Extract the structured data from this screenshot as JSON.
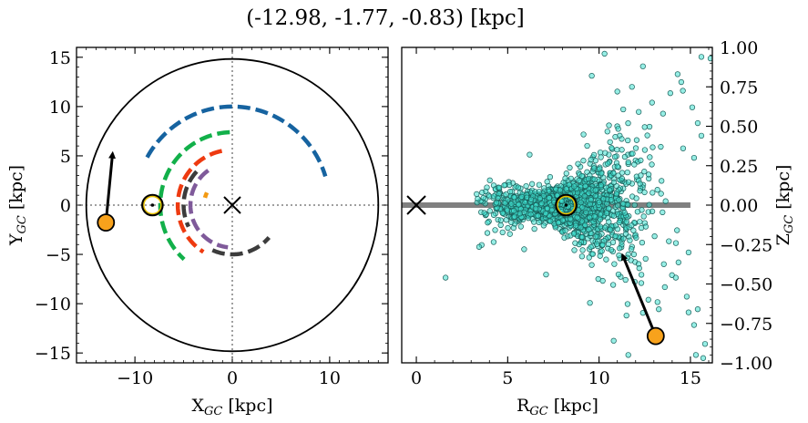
{
  "figure": {
    "suptitle": "(-12.98, -1.77, -0.83) [kpc]"
  },
  "chart_data": [
    {
      "type": "line",
      "panel": "left",
      "xlabel": "X_GC [kpc]",
      "ylabel": "Y_GC [kpc]",
      "xlim": [
        -16,
        16
      ],
      "ylim": [
        -16,
        16
      ],
      "xticks": [
        -10,
        0,
        10
      ],
      "yticks": [
        -15,
        -10,
        -5,
        0,
        5,
        10,
        15
      ],
      "tick_labels_x": [
        "−10",
        "0",
        "10"
      ],
      "tick_labels_y": [
        "−15",
        "−10",
        "−5",
        "0",
        "5",
        "10",
        "15"
      ],
      "boundary_circle_radius": 15,
      "arms": [
        {
          "color": "#1663a0",
          "radius": 10.0,
          "start_deg": 151,
          "end_deg": 17
        },
        {
          "color": "#12b04a",
          "radius": 7.4,
          "start_deg": 92,
          "end_deg": 228
        },
        {
          "color": "#ee3a10",
          "radius": 5.6,
          "start_deg": 101,
          "end_deg": 238
        },
        {
          "color": "#7f5a9a",
          "radius": 4.3,
          "start_deg": 125,
          "end_deg": 264
        },
        {
          "color": "#f39a12",
          "radius": 2.9,
          "start_deg": 154,
          "end_deg": 165
        },
        {
          "color": "#3c3c3c",
          "radius": 5.0,
          "start_deg": 137,
          "end_deg": 206
        },
        {
          "color": "#3c3c3c",
          "radius": 5.0,
          "start_deg": 246,
          "end_deg": 319
        }
      ],
      "center_marker": {
        "x": 0,
        "y": 0
      },
      "sun": {
        "x": -8.2,
        "y": 0
      },
      "object": {
        "x": -12.98,
        "y": -1.77,
        "color": "#f8a21c"
      },
      "velocity_arrow": {
        "x0": -12.98,
        "y0": -1.77,
        "x1": -12.3,
        "y1": 5.2
      }
    },
    {
      "type": "scatter",
      "panel": "right",
      "xlabel": "R_GC [kpc]",
      "ylabel": "Z_GC [kpc]",
      "xlim": [
        -0.8,
        16.2
      ],
      "ylim": [
        -1.0,
        1.0
      ],
      "xticks": [
        0,
        5,
        10,
        15
      ],
      "yticks": [
        -1.0,
        -0.75,
        -0.5,
        -0.25,
        0.0,
        0.25,
        0.5,
        0.75,
        1.0
      ],
      "tick_labels_x": [
        "0",
        "5",
        "10",
        "15"
      ],
      "tick_labels_y": [
        "−1.00",
        "−0.75",
        "−0.50",
        "−0.25",
        "0.00",
        "0.25",
        "0.50",
        "0.75",
        "1.00"
      ],
      "disk_line": {
        "x0": -0.8,
        "x1": 15,
        "y": 0
      },
      "center_marker": {
        "x": 0,
        "y": 0
      },
      "sun": {
        "x": 8.2,
        "y": 0
      },
      "object": {
        "x": 13.1,
        "y": -0.83,
        "color": "#f8a21c"
      },
      "velocity_arrow": {
        "x0": 13.1,
        "y0": -0.83,
        "x1": 11.3,
        "y1": -0.32
      },
      "scatter_style": {
        "color": "#40e0d0",
        "edge": "#1a5f5a",
        "count": 1700
      },
      "points": [
        [
          16.1,
          0.93
        ],
        [
          15.6,
          0.94
        ],
        [
          14.3,
          0.83
        ],
        [
          15.3,
          -0.95
        ],
        [
          15.7,
          -0.97
        ],
        [
          15.2,
          -0.76
        ],
        [
          14.9,
          -0.68
        ],
        [
          1.6,
          -0.46
        ],
        [
          3.3,
          0.07
        ],
        [
          3.6,
          0.08
        ],
        [
          15.4,
          0.52
        ],
        [
          15.6,
          0.44
        ],
        [
          15.1,
          0.62
        ],
        [
          14.5,
          0.78
        ],
        [
          13.9,
          0.71
        ],
        [
          10.3,
          0.96
        ],
        [
          12.4,
          0.88
        ],
        [
          15.8,
          -0.88
        ],
        [
          15.4,
          -0.66
        ],
        [
          14.8,
          -0.58
        ],
        [
          13.5,
          0.58
        ],
        [
          11.8,
          0.75
        ],
        [
          9.6,
          0.82
        ],
        [
          11.0,
          0.72
        ],
        [
          12.9,
          0.65
        ],
        [
          14.2,
          -0.46
        ],
        [
          12.7,
          -0.6
        ],
        [
          11.5,
          -0.7
        ],
        [
          10.2,
          -0.48
        ],
        [
          13.6,
          -0.52
        ],
        [
          15.2,
          0.3
        ],
        [
          14.9,
          -0.3
        ],
        [
          6.2,
          0.32
        ],
        [
          5.9,
          -0.28
        ],
        [
          7.1,
          -0.44
        ],
        [
          9.5,
          -0.62
        ],
        [
          10.8,
          -0.86
        ],
        [
          11.6,
          -0.95
        ],
        [
          14.6,
          0.36
        ],
        [
          12.2,
          -0.4
        ]
      ]
    }
  ]
}
